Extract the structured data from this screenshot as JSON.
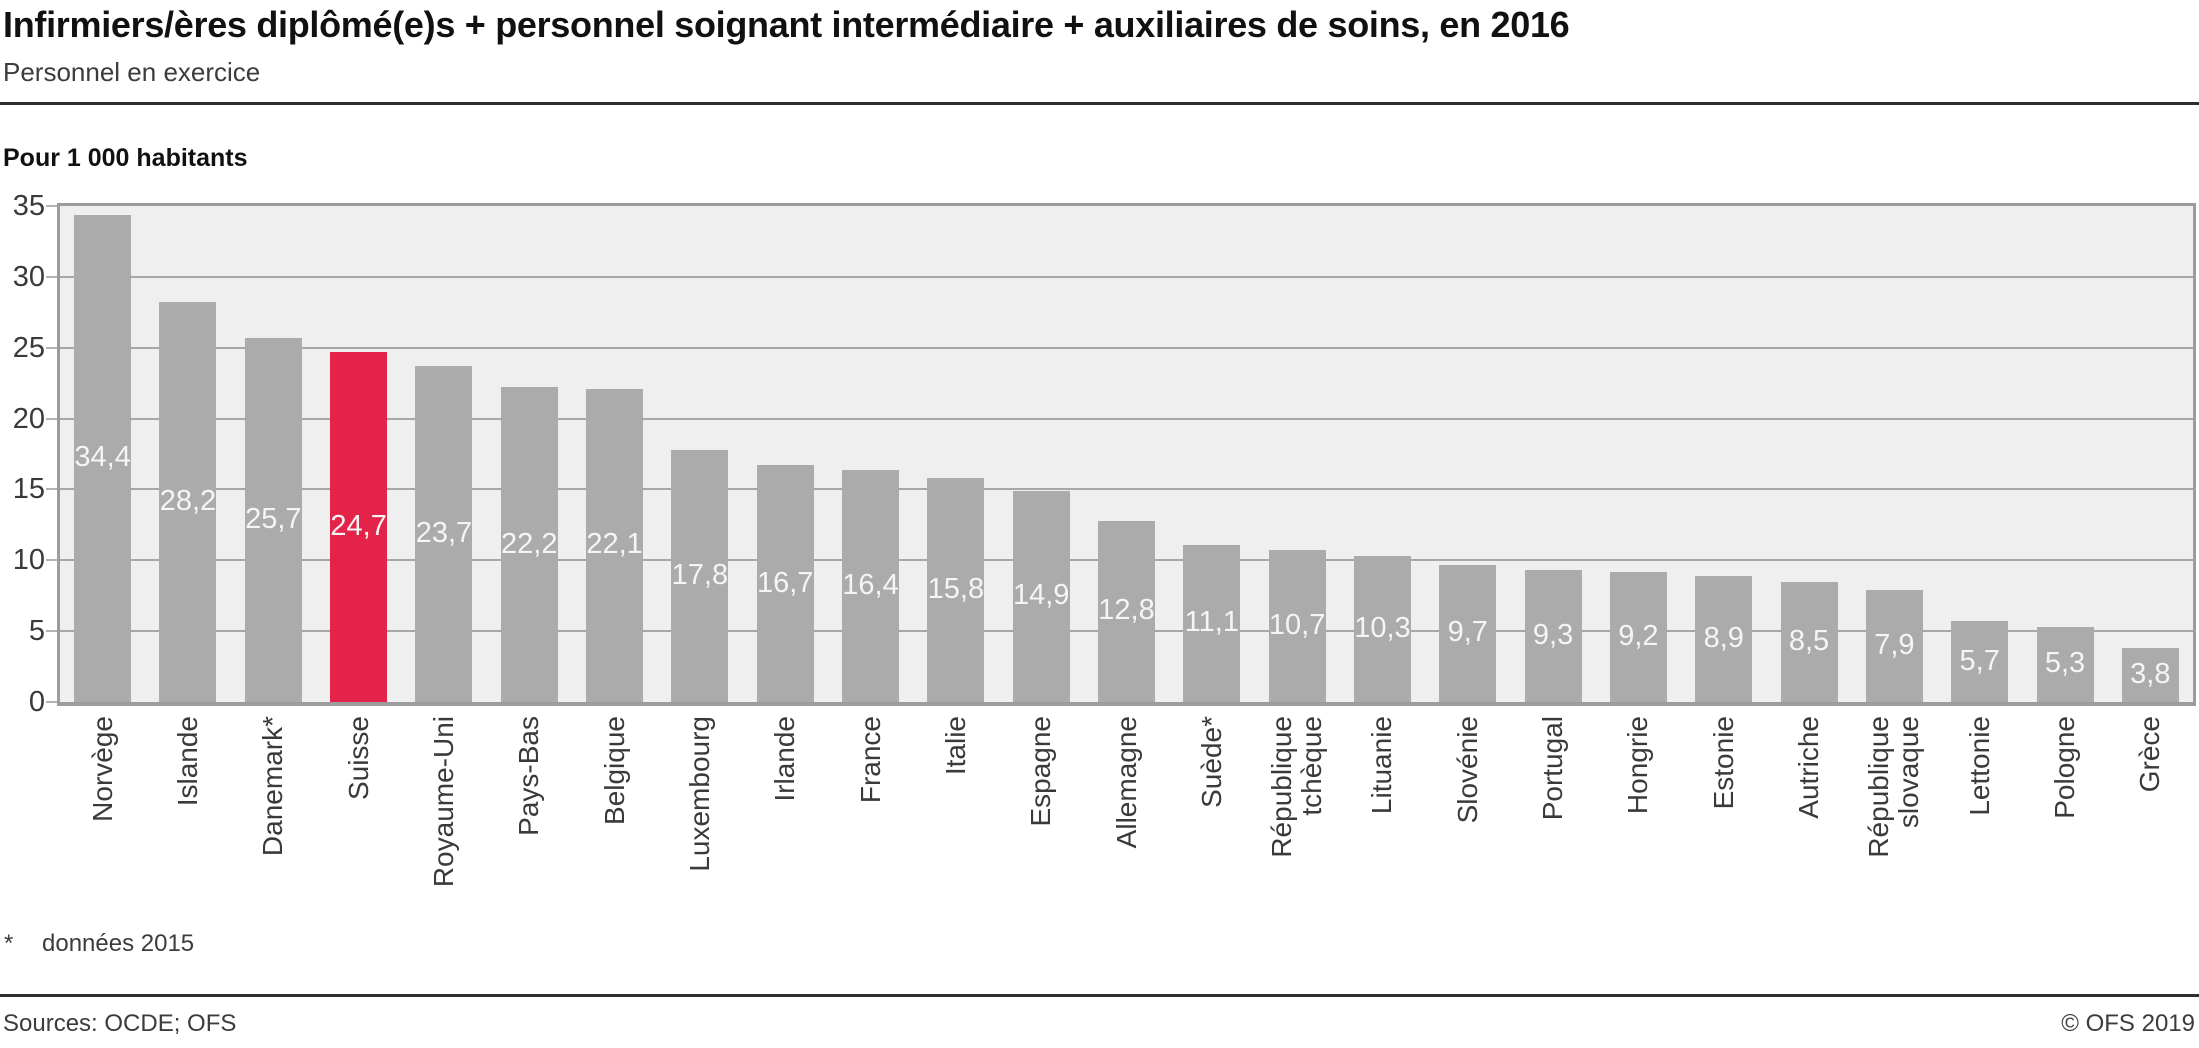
{
  "header": {
    "title": "Infirmiers/ères diplômé(e)s + personnel soignant intermédiaire + auxiliaires de soins, en 2016",
    "subtitle": "Personnel en exercice"
  },
  "footnote": {
    "marker": "*",
    "text": "données 2015"
  },
  "footer": {
    "sources": "Sources: OCDE; OFS",
    "copyright": "© OFS 2019"
  },
  "chart_data": {
    "type": "bar",
    "title": "Infirmiers/ères diplômé(e)s + personnel soignant intermédiaire + auxiliaires de soins, en 2016",
    "subtitle": "Personnel en exercice",
    "ylabel": "Pour 1 000 habitants",
    "xlabel": "",
    "ylim": [
      0,
      35
    ],
    "ytick_step": 5,
    "yticks": [
      0,
      5,
      10,
      15,
      20,
      25,
      30,
      35
    ],
    "grid": true,
    "legend": "none",
    "decimal_separator": ",",
    "categories": [
      "Norvège",
      "Islande",
      "Danemark*",
      "Suisse",
      "Royaume-Uni",
      "Pays-Bas",
      "Belgique",
      "Luxembourg",
      "Irlande",
      "France",
      "Italie",
      "Espagne",
      "Allemagne",
      "Suède*",
      "République\ntchèque",
      "Lituanie",
      "Slovénie",
      "Portugal",
      "Hongrie",
      "Estonie",
      "Autriche",
      "République\nslovaque",
      "Lettonie",
      "Pologne",
      "Grèce"
    ],
    "values": [
      34.4,
      28.2,
      25.7,
      24.7,
      23.7,
      22.2,
      22.1,
      17.8,
      16.7,
      16.4,
      15.8,
      14.9,
      12.8,
      11.1,
      10.7,
      10.3,
      9.7,
      9.3,
      9.2,
      8.9,
      8.5,
      7.9,
      5.7,
      5.3,
      3.8
    ],
    "value_labels": [
      "34,4",
      "28,2",
      "25,7",
      "24,7",
      "23,7",
      "22,2",
      "22,1",
      "17,8",
      "16,7",
      "16,4",
      "15,8",
      "14,9",
      "12,8",
      "11,1",
      "10,7",
      "10,3",
      "9,7",
      "9,3",
      "9,2",
      "8,9",
      "8,5",
      "7,9",
      "5,7",
      "5,3",
      "3,8"
    ],
    "highlight_index": 3,
    "highlight_category": "Suisse",
    "colors": {
      "bar": "#ababab",
      "highlight": "#e3234a",
      "plot_background": "#efefef",
      "gridline": "#a7a7a7",
      "plot_border": "#9c9c9c",
      "value_label": "#f5f5f5",
      "axis_text": "#3a3a3a"
    }
  }
}
